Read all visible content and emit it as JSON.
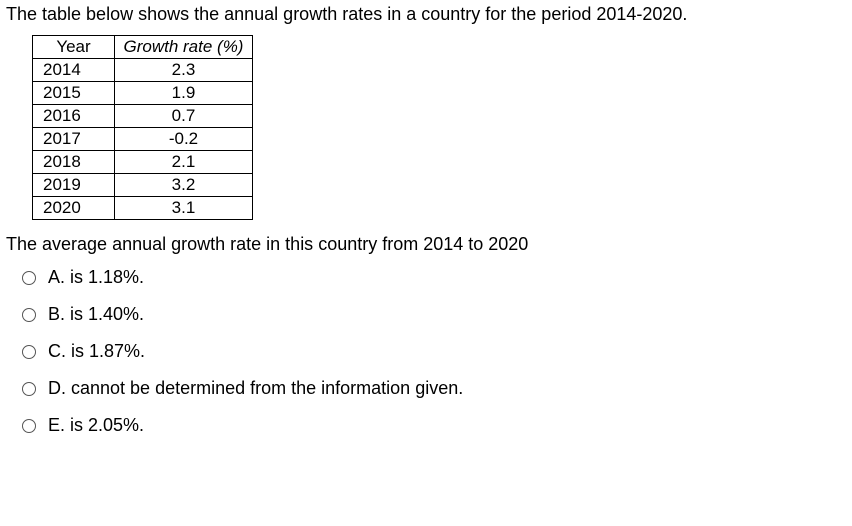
{
  "intro_text": "The table below shows the annual growth rates in a country for the period 2014-2020.",
  "table": {
    "columns": [
      "Year",
      "Growth rate (%)"
    ],
    "rows": [
      [
        "2014",
        "2.3"
      ],
      [
        "2015",
        "1.9"
      ],
      [
        "2016",
        "0.7"
      ],
      [
        "2017",
        "-0.2"
      ],
      [
        "2018",
        "2.1"
      ],
      [
        "2019",
        "3.2"
      ],
      [
        "2020",
        "3.1"
      ]
    ],
    "col_year_width": 82,
    "col_rate_width": 138,
    "border_color": "#000000",
    "font_size": 17
  },
  "question_text": "The average annual growth rate in this country from 2014 to 2020",
  "options": [
    {
      "label": "A. is 1.18%."
    },
    {
      "label": "B. is 1.40%."
    },
    {
      "label": "C. is 1.87%."
    },
    {
      "label": "D. cannot be determined from the information given."
    },
    {
      "label": "E. is 2.05%."
    }
  ],
  "colors": {
    "text": "#000000",
    "background": "#ffffff",
    "radio_border": "#555555"
  }
}
